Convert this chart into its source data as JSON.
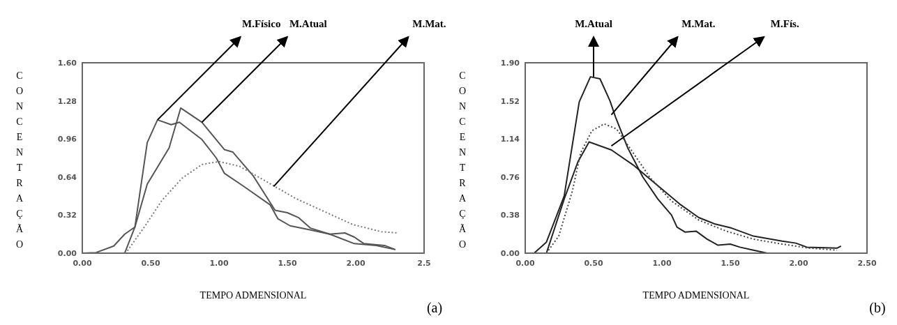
{
  "chart_data": [
    {
      "type": "line",
      "xlabel": "TEMPO ADMENSIONAL",
      "ylabel": "CONCENTRAÇÃO",
      "xlim": [
        0,
        2.5
      ],
      "ylim": [
        0,
        1.6
      ],
      "xticks": [
        {
          "value": 0,
          "label": "0.00"
        },
        {
          "value": 0.5,
          "label": "0.50"
        },
        {
          "value": 1,
          "label": "1.00"
        },
        {
          "value": 1.5,
          "label": "1.50"
        },
        {
          "value": 2,
          "label": "2.00"
        },
        2.5
      ],
      "yticks": [
        {
          "value": 0,
          "label": "0.00"
        },
        0.32,
        0.64,
        0.96,
        1.28,
        {
          "value": 1.6,
          "label": "1.60"
        }
      ],
      "series": [
        {
          "color": "#555555",
          "line_style": "solid",
          "x": [
            0,
            0.1,
            0.23,
            0.31,
            0.385,
            0.475,
            0.55,
            0.65,
            0.71,
            0.875,
            0.98,
            1.04,
            1.17,
            1.375,
            1.43,
            1.52,
            1.67,
            1.81,
            1.99,
            2.15,
            2.29
          ],
          "values": [
            0,
            0.005,
            0.06,
            0.16,
            0.22,
            0.93,
            1.12,
            1.08,
            1.1,
            0.955,
            0.8,
            0.67,
            0.57,
            0.405,
            0.29,
            0.23,
            0.195,
            0.16,
            0.08,
            0.065,
            0.03
          ]
        },
        {
          "color": "#555555",
          "line_style": "solid",
          "x": [
            0.31,
            0.385,
            0.475,
            0.635,
            0.72,
            0.875,
            1.04,
            1.1,
            1.25,
            1.41,
            1.5,
            1.58,
            1.67,
            1.81,
            1.92,
            1.99,
            2.06,
            2.21,
            2.29
          ],
          "values": [
            0,
            0.22,
            0.58,
            0.885,
            1.22,
            1.1,
            0.87,
            0.85,
            0.65,
            0.36,
            0.34,
            0.3,
            0.21,
            0.16,
            0.17,
            0.135,
            0.08,
            0.065,
            0.03
          ]
        },
        {
          "color": "#777777",
          "line_style": "dotted",
          "x": [
            0.33,
            0.46,
            0.58,
            0.73,
            0.875,
            1,
            1.15,
            1.35,
            1.56,
            1.77,
            1.98,
            2.19,
            2.31
          ],
          "values": [
            0.02,
            0.23,
            0.44,
            0.63,
            0.745,
            0.77,
            0.73,
            0.6,
            0.46,
            0.35,
            0.24,
            0.18,
            0.17
          ]
        }
      ],
      "annotations": [
        {
          "text": "M.Físico",
          "x": 0.55,
          "y": 1.12
        },
        {
          "text": "M.Atual",
          "x": 0.875,
          "y": 1.1
        },
        {
          "text": "M.Mat.",
          "x": 1.4,
          "y": 0.56
        },
        "(a)"
      ]
    },
    {
      "type": "line",
      "xlabel": "TEMPO ADMENSIONAL",
      "ylabel": "CONCENTRAÇÃO",
      "xlim": [
        0,
        2.5
      ],
      "ylim": [
        0,
        1.9
      ],
      "xticks": [
        {
          "value": 0,
          "label": "0.00"
        },
        {
          "value": 0.5,
          "label": "0.50"
        },
        {
          "value": 1,
          "label": "1.00"
        },
        {
          "value": 1.5,
          "label": "1.50"
        },
        {
          "value": 2,
          "label": "2.00"
        },
        {
          "value": 2.5,
          "label": "2.50"
        }
      ],
      "yticks": [
        {
          "value": 0,
          "label": "0.00"
        },
        0.38,
        0.76,
        1.14,
        1.52,
        {
          "value": 1.9,
          "label": "1.90"
        }
      ],
      "series": [
        {
          "color": "#222222",
          "line_style": "solid",
          "x": [
            0.065,
            0.155,
            0.285,
            0.395,
            0.477,
            0.547,
            0.62,
            0.66,
            0.75,
            0.86,
            0.97,
            1.07,
            1.11,
            1.17,
            1.25,
            1.33,
            1.41,
            1.5,
            1.57,
            1.67,
            1.77
          ],
          "values": [
            0,
            0.11,
            0.57,
            1.51,
            1.76,
            1.74,
            1.52,
            1.36,
            1.05,
            0.76,
            0.54,
            0.38,
            0.26,
            0.21,
            0.22,
            0.14,
            0.08,
            0.09,
            0.06,
            0.03,
            0
          ]
        },
        {
          "color": "#222222",
          "line_style": "solid",
          "x": [
            0.155,
            0.285,
            0.385,
            0.467,
            0.63,
            0.79,
            0.99,
            1.13,
            1.27,
            1.39,
            1.51,
            1.67,
            1.88,
            1.98,
            2.06,
            2.28,
            2.31
          ],
          "values": [
            0,
            0.54,
            0.91,
            1.11,
            1.03,
            0.88,
            0.65,
            0.49,
            0.355,
            0.29,
            0.25,
            0.17,
            0.12,
            0.1,
            0.06,
            0.05,
            0.07
          ]
        },
        {
          "color": "#444444",
          "line_style": "dotted",
          "x": [
            0.155,
            0.245,
            0.345,
            0.405,
            0.487,
            0.577,
            0.668,
            0.79,
            0.91,
            1.07,
            1.27,
            1.47,
            1.67,
            1.88,
            2.08,
            2.28
          ],
          "values": [
            0,
            0.17,
            0.62,
            1,
            1.22,
            1.29,
            1.24,
            1,
            0.76,
            0.52,
            0.33,
            0.22,
            0.14,
            0.09,
            0.05,
            0.03
          ]
        }
      ],
      "annotations": [
        {
          "text": "M.Atual",
          "x": 0.5,
          "y": 1.76
        },
        {
          "text": "M.Mat.",
          "x": 0.63,
          "y": 1.38
        },
        {
          "text": "M.Fís.",
          "x": 0.63,
          "y": 1.07
        },
        "(b)"
      ]
    }
  ]
}
